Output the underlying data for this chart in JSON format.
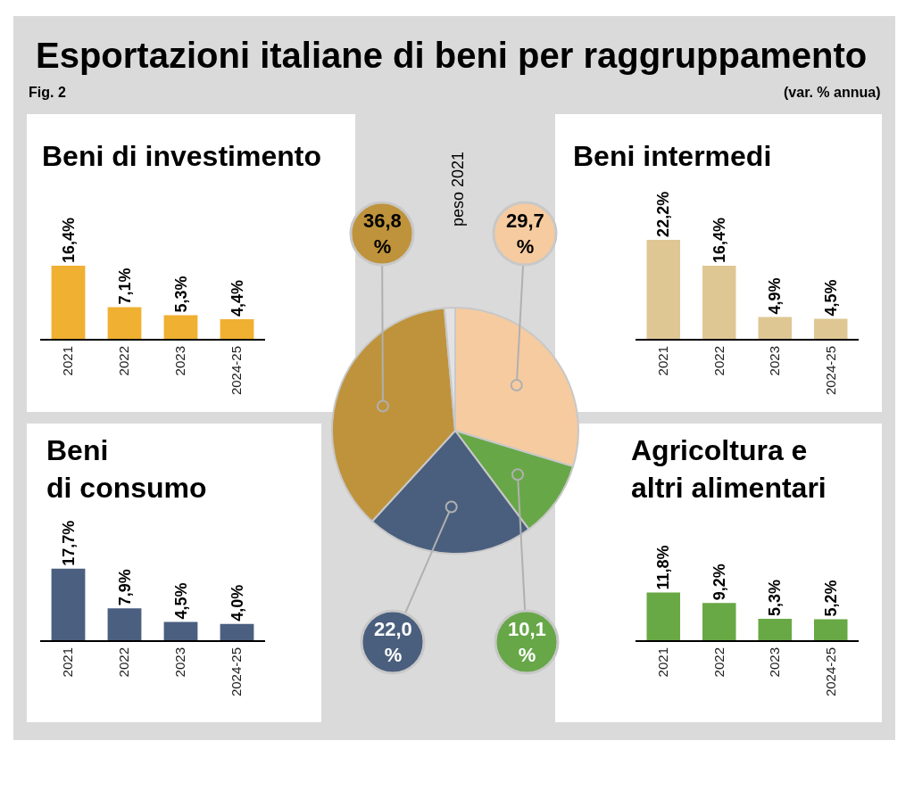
{
  "chart_data": [
    {
      "type": "other",
      "title": "Esportazioni italiane di beni per raggruppamento",
      "subtitle": "Fig. 2",
      "annotations": [
        "(var. % annua)"
      ]
    },
    {
      "type": "bar",
      "title": "Beni di investimento",
      "categories": [
        "2021",
        "2022",
        "2023",
        "2024-25"
      ],
      "values": [
        16.4,
        7.1,
        5.3,
        4.4
      ],
      "color": "#f0b032",
      "value_labels": [
        "16,4%",
        "7,1%",
        "5,3%",
        "4,4%"
      ]
    },
    {
      "type": "pie",
      "title": "peso 2021",
      "categories": [
        null,
        null,
        null,
        null,
        null
      ],
      "values": [
        29.7,
        10.1,
        22.0,
        36.8,
        1.4
      ],
      "colors": [
        "#f6cba0",
        "#67a748",
        "#4a5f7e",
        "#bf933b",
        "#e2e2e2"
      ],
      "value_labels": [
        "29,7 %",
        "10,1 %",
        "22,0 %",
        "36,8 %",
        null
      ]
    },
    {
      "type": "bar",
      "title": "Beni intermedi",
      "categories": [
        "2021",
        "2022",
        "2023",
        "2024-25"
      ],
      "values": [
        22.2,
        16.4,
        4.9,
        4.5
      ],
      "color": "#dfc794",
      "value_labels": [
        "22,2%",
        "16,4%",
        "4,9%",
        "4,5%"
      ]
    },
    {
      "type": "bar",
      "title": "Beni\ndi consumo",
      "categories": [
        "2021",
        "2022",
        "2023",
        "2024-25"
      ],
      "values": [
        17.7,
        7.9,
        4.5,
        4.0
      ],
      "color": "#4b5f80",
      "value_labels": [
        "17,7%",
        "7,9%",
        "4,5%",
        "4,0%"
      ]
    },
    {
      "type": "bar",
      "title": "Agricoltura e\naltri alimentari",
      "categories": [
        "2021",
        "2022",
        "2023",
        "2024-25"
      ],
      "values": [
        11.8,
        9.2,
        5.3,
        5.2
      ],
      "color": "#68a845",
      "value_labels": [
        "11,8%",
        "9,2%",
        "5,3%",
        "5,2%"
      ]
    }
  ]
}
